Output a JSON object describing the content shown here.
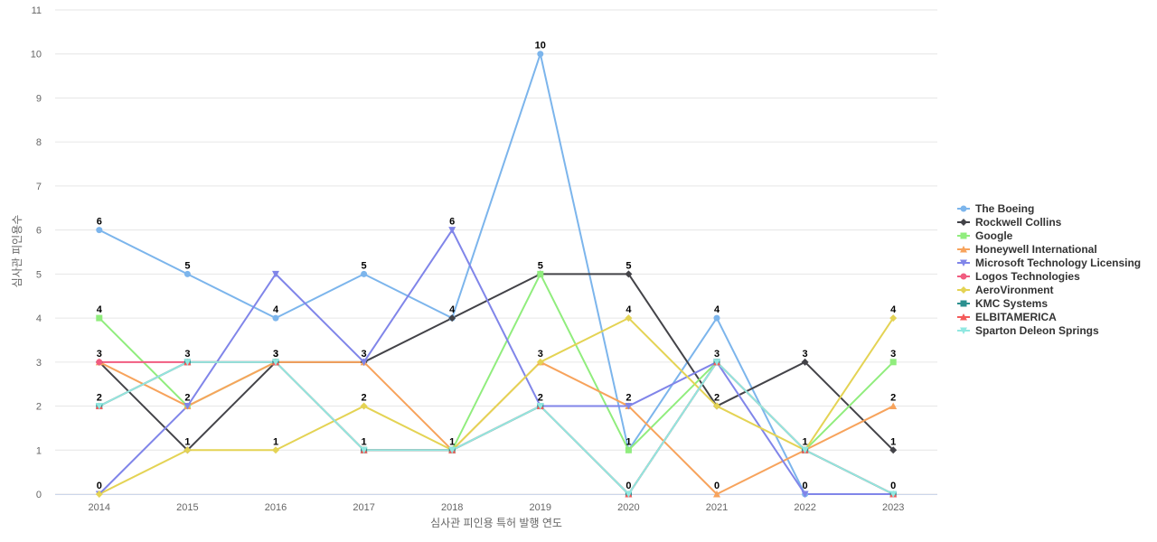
{
  "chart_data": {
    "type": "line",
    "title": "",
    "xlabel": "심사관 피인용 특허 발행 연도",
    "ylabel": "심사관 피인용수",
    "categories": [
      "2014",
      "2015",
      "2016",
      "2017",
      "2018",
      "2019",
      "2020",
      "2021",
      "2022",
      "2023"
    ],
    "y_ticks": [
      "0",
      "1",
      "2",
      "3",
      "4",
      "5",
      "6",
      "7",
      "8",
      "9",
      "10",
      "11"
    ],
    "ylim": [
      0,
      11
    ],
    "grid": true,
    "legend_position": "right",
    "series": [
      {
        "name": "The Boeing",
        "color": "#7cb5ec",
        "marker": "circle",
        "values": [
          6,
          5,
          4,
          5,
          4,
          10,
          1,
          4,
          0,
          0
        ],
        "labels": [
          "6",
          "5",
          "4",
          "5",
          "4",
          "10",
          "1",
          "4",
          "0",
          "0"
        ]
      },
      {
        "name": "Rockwell Collins",
        "color": "#434348",
        "marker": "diamond",
        "values": [
          3,
          1,
          3,
          3,
          4,
          5,
          5,
          2,
          3,
          1
        ],
        "labels": [
          "3",
          "1",
          "3",
          "3",
          "4",
          "5",
          "5",
          "2",
          "3",
          "1"
        ]
      },
      {
        "name": "Google",
        "color": "#90ed7d",
        "marker": "square",
        "values": [
          4,
          2,
          3,
          1,
          1,
          5,
          1,
          3,
          1,
          3
        ],
        "labels": [
          "4",
          "2",
          "3",
          "1",
          "1",
          "5",
          "1",
          "3",
          "1",
          "3"
        ]
      },
      {
        "name": "Honeywell International",
        "color": "#f7a35c",
        "marker": "triangle",
        "values": [
          3,
          2,
          3,
          3,
          1,
          3,
          2,
          0,
          1,
          2
        ],
        "labels": [
          "3",
          "2",
          "3",
          "3",
          "1",
          "3",
          "2",
          "0",
          "1",
          "2"
        ]
      },
      {
        "name": "Microsoft Technology Licensing",
        "color": "#8085e9",
        "marker": "triangle-down",
        "values": [
          0,
          2,
          5,
          3,
          6,
          2,
          2,
          3,
          0,
          0
        ],
        "labels": [
          "0",
          "2",
          "5",
          "3",
          "6",
          "2",
          "2",
          "3",
          "0",
          "0"
        ]
      },
      {
        "name": "Logos Technologies",
        "color": "#f15c80",
        "marker": "circle",
        "values": [
          3,
          3,
          3,
          1,
          1,
          2,
          0,
          3,
          1,
          0
        ],
        "labels": [
          "3",
          "3",
          "3",
          "1",
          "1",
          "2",
          "0",
          "3",
          "1",
          "0"
        ]
      },
      {
        "name": "AeroVironment",
        "color": "#e4d354",
        "marker": "diamond",
        "values": [
          0,
          1,
          1,
          2,
          1,
          3,
          4,
          2,
          1,
          4
        ],
        "labels": [
          "0",
          "1",
          "1",
          "2",
          "1",
          "3",
          "4",
          "2",
          "1",
          "4"
        ]
      },
      {
        "name": "KMC Systems",
        "color": "#2b908f",
        "marker": "square",
        "values": [
          2,
          3,
          3,
          1,
          1,
          2,
          0,
          3,
          1,
          0
        ],
        "labels": [
          "2",
          "3",
          "3",
          "1",
          "1",
          "2",
          "0",
          "3",
          "1",
          "0"
        ]
      },
      {
        "name": "ELBITAMERICA",
        "color": "#f45b5b",
        "marker": "triangle",
        "values": [
          2,
          3,
          3,
          1,
          1,
          2,
          0,
          3,
          1,
          0
        ],
        "labels": [
          "2",
          "3",
          "3",
          "1",
          "1",
          "2",
          "0",
          "3",
          "1",
          "0"
        ]
      },
      {
        "name": "Sparton Deleon Springs",
        "color": "#91e8e1",
        "marker": "triangle-down",
        "values": [
          2,
          3,
          3,
          1,
          1,
          2,
          0,
          3,
          1,
          0
        ],
        "labels": [
          "2",
          "3",
          "3",
          "1",
          "1",
          "2",
          "0",
          "3",
          "1",
          "0"
        ]
      }
    ],
    "point_labels": [
      {
        "series": "The Boeing",
        "index": 0
      },
      {
        "series": "The Boeing",
        "index": 1
      },
      {
        "series": "Rockwell Collins",
        "index": 2
      },
      {
        "series": "The Boeing",
        "index": 3
      },
      {
        "series": "Microsoft Technology Licensing",
        "index": 4
      },
      {
        "series": "The Boeing",
        "index": 5
      },
      {
        "series": "Rockwell Collins",
        "index": 6
      },
      {
        "series": "The Boeing",
        "index": 7
      },
      {
        "series": "Rockwell Collins",
        "index": 8
      },
      {
        "series": "AeroVironment",
        "index": 9
      },
      {
        "series": "Google",
        "index": 0
      },
      {
        "series": "Logos Technologies",
        "index": 1
      },
      {
        "series": "The Boeing",
        "index": 2
      },
      {
        "series": "Microsoft Technology Licensing",
        "index": 3
      },
      {
        "series": "Rockwell Collins",
        "index": 4
      },
      {
        "series": "Google",
        "index": 5
      },
      {
        "series": "AeroVironment",
        "index": 6
      },
      {
        "series": "Google",
        "index": 7
      },
      {
        "series": "Google",
        "index": 9
      },
      {
        "series": "Honeywell International",
        "index": 0
      },
      {
        "series": "Honeywell International",
        "index": 1
      },
      {
        "series": "Google",
        "index": 2
      },
      {
        "series": "AeroVironment",
        "index": 3
      },
      {
        "series": "AeroVironment",
        "index": 5
      },
      {
        "series": "Honeywell International",
        "index": 6
      },
      {
        "series": "AeroVironment",
        "index": 7
      },
      {
        "series": "Honeywell International",
        "index": 9
      },
      {
        "series": "KMC Systems",
        "index": 0
      },
      {
        "series": "AeroVironment",
        "index": 1
      },
      {
        "series": "AeroVironment",
        "index": 2
      },
      {
        "series": "Google",
        "index": 3
      },
      {
        "series": "Google",
        "index": 4
      },
      {
        "series": "KMC Systems",
        "index": 5
      },
      {
        "series": "Google",
        "index": 6
      },
      {
        "series": "Honeywell International",
        "index": 7
      },
      {
        "series": "Google",
        "index": 8
      },
      {
        "series": "Rockwell Collins",
        "index": 9
      },
      {
        "series": "AeroVironment",
        "index": 0
      },
      {
        "series": "Logos Technologies",
        "index": 6
      },
      {
        "series": "Microsoft Technology Licensing",
        "index": 8
      },
      {
        "series": "KMC Systems",
        "index": 9
      }
    ]
  }
}
